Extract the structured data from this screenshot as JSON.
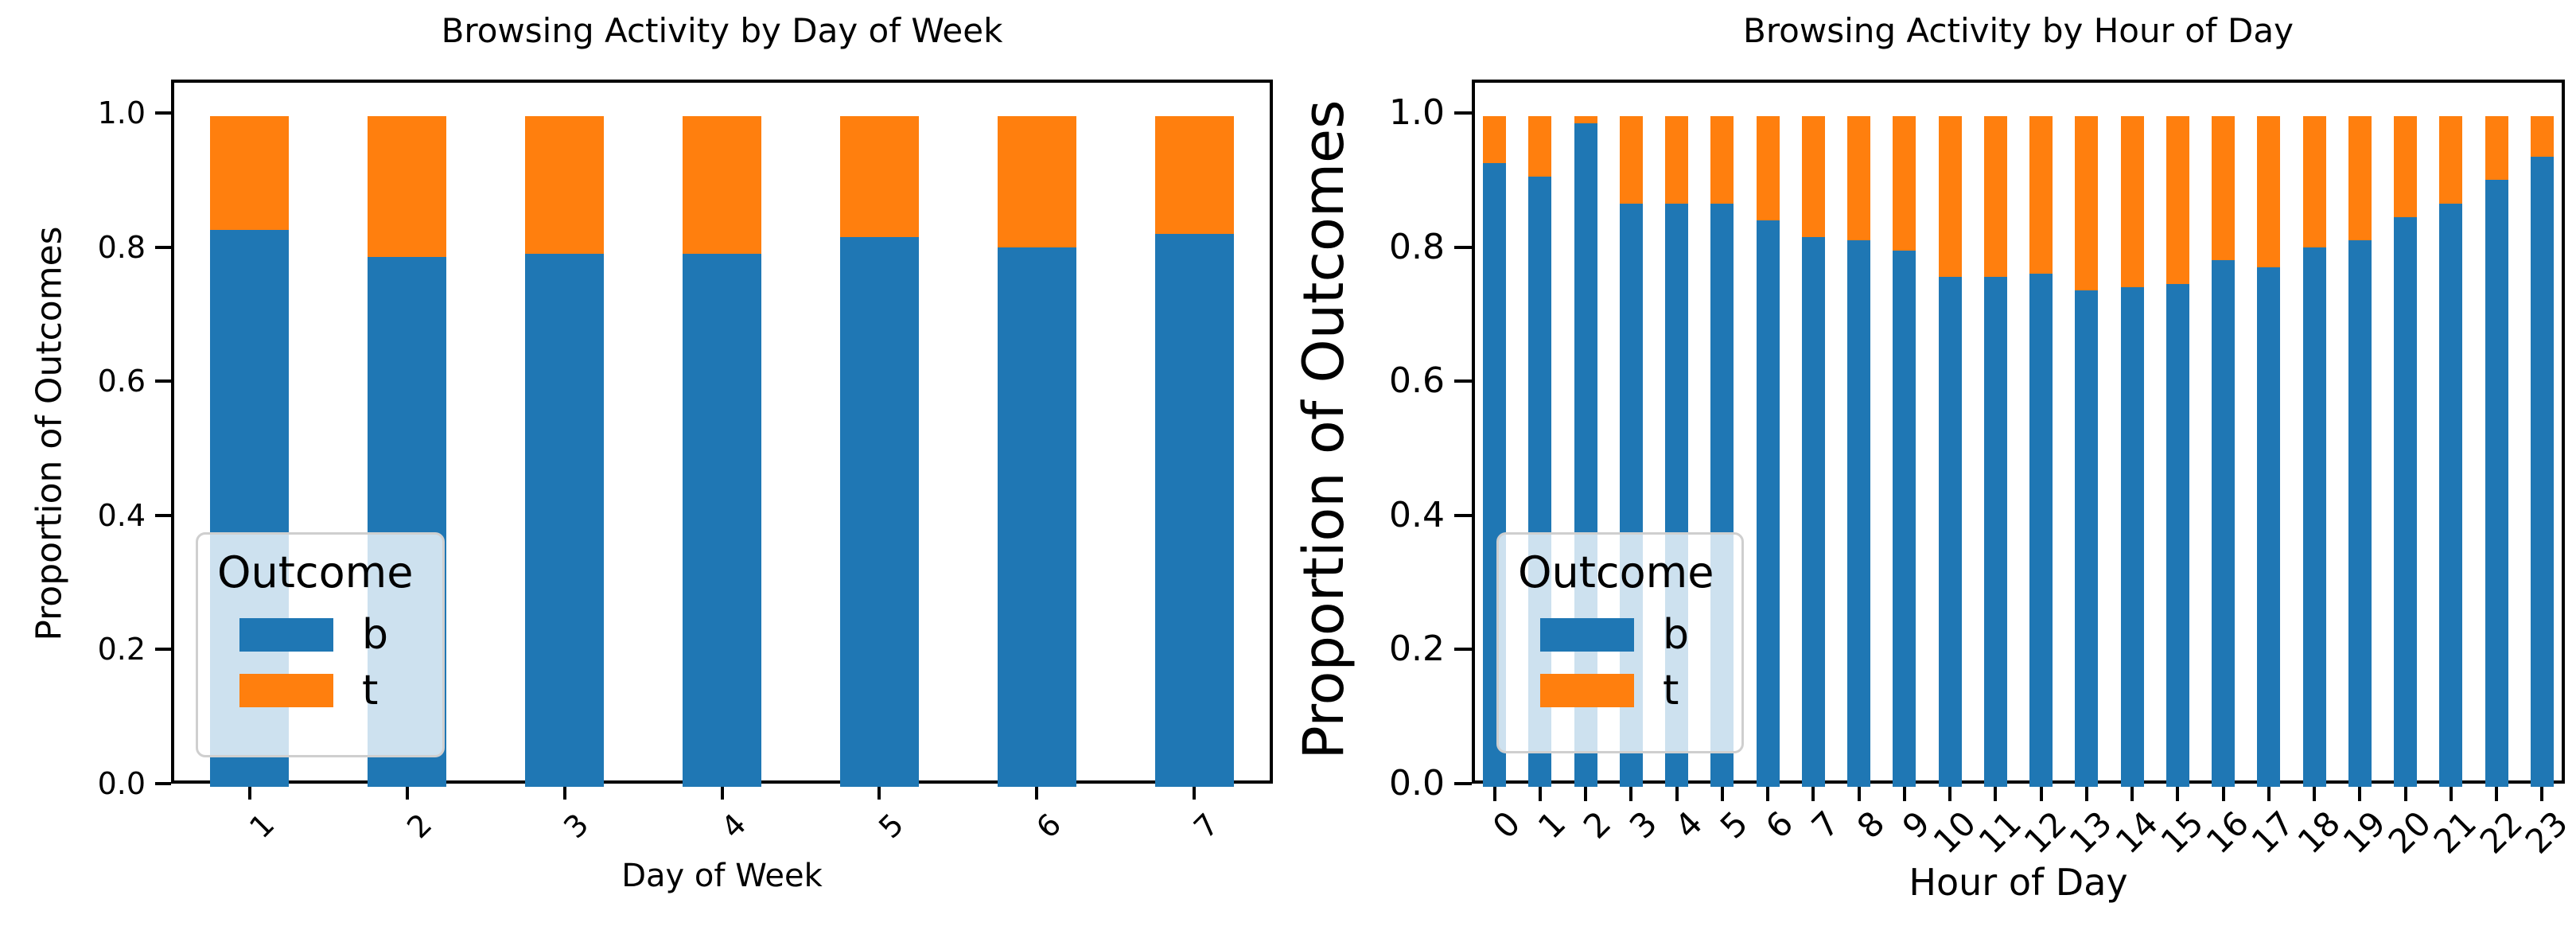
{
  "accent_colors": {
    "blue": "#1f77b4",
    "orange": "#ff7f0e"
  },
  "chart_data": [
    {
      "type": "bar",
      "stacked": true,
      "title": "Browsing Activity by Day of Week",
      "xlabel": "Day of Week",
      "ylabel": "Proportion of Outcomes",
      "categories": [
        "1",
        "2",
        "3",
        "4",
        "5",
        "6",
        "7"
      ],
      "series": [
        {
          "name": "b",
          "color": "#1f77b4",
          "values": [
            0.83,
            0.79,
            0.795,
            0.795,
            0.82,
            0.805,
            0.825
          ]
        },
        {
          "name": "t",
          "color": "#ff7f0e",
          "values": [
            0.17,
            0.21,
            0.205,
            0.205,
            0.18,
            0.195,
            0.175
          ]
        }
      ],
      "ylim": [
        0,
        1.05
      ],
      "ytick_values": [
        0.0,
        0.2,
        0.4,
        0.6,
        0.8,
        1.0
      ],
      "ytick_labels": [
        "0.0",
        "0.2",
        "0.4",
        "0.6",
        "0.8",
        "1.0"
      ],
      "xtick_rotation_deg": 45,
      "grid": false,
      "legend_title": "Outcome",
      "legend_position": "lower left"
    },
    {
      "type": "bar",
      "stacked": true,
      "title": "Browsing Activity by Hour of Day",
      "xlabel": "Hour of Day",
      "ylabel": "Proportion of Outcomes",
      "categories": [
        "0",
        "1",
        "2",
        "3",
        "4",
        "5",
        "6",
        "7",
        "8",
        "9",
        "10",
        "11",
        "12",
        "13",
        "14",
        "15",
        "16",
        "17",
        "18",
        "19",
        "20",
        "21",
        "22",
        "23"
      ],
      "series": [
        {
          "name": "b",
          "color": "#1f77b4",
          "values": [
            0.93,
            0.91,
            0.99,
            0.87,
            0.87,
            0.87,
            0.845,
            0.82,
            0.815,
            0.8,
            0.76,
            0.76,
            0.765,
            0.74,
            0.745,
            0.75,
            0.785,
            0.775,
            0.805,
            0.815,
            0.85,
            0.87,
            0.905,
            0.94
          ]
        },
        {
          "name": "t",
          "color": "#ff7f0e",
          "values": [
            0.07,
            0.09,
            0.01,
            0.13,
            0.13,
            0.13,
            0.155,
            0.18,
            0.185,
            0.2,
            0.24,
            0.24,
            0.235,
            0.26,
            0.255,
            0.25,
            0.215,
            0.225,
            0.195,
            0.185,
            0.15,
            0.13,
            0.095,
            0.06
          ]
        }
      ],
      "ylim": [
        0,
        1.05
      ],
      "ytick_values": [
        0.0,
        0.2,
        0.4,
        0.6,
        0.8,
        1.0
      ],
      "ytick_labels": [
        "0.0",
        "0.2",
        "0.4",
        "0.6",
        "0.8",
        "1.0"
      ],
      "xtick_rotation_deg": 45,
      "grid": false,
      "legend_title": "Outcome",
      "legend_position": "lower left"
    }
  ]
}
